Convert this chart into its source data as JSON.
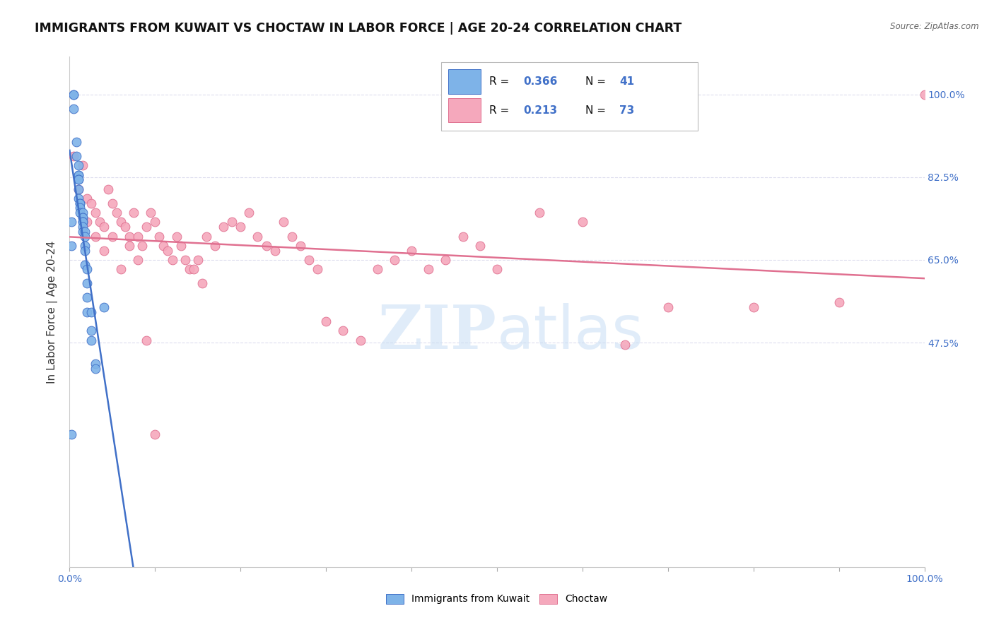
{
  "title": "IMMIGRANTS FROM KUWAIT VS CHOCTAW IN LABOR FORCE | AGE 20-24 CORRELATION CHART",
  "source": "Source: ZipAtlas.com",
  "ylabel": "In Labor Force | Age 20-24",
  "xlim": [
    0.0,
    100.0
  ],
  "ylim": [
    0.0,
    108.0
  ],
  "ytick_labels": [
    "100.0%",
    "82.5%",
    "65.0%",
    "47.5%"
  ],
  "ytick_values": [
    100.0,
    82.5,
    65.0,
    47.5
  ],
  "color_kuwait": "#7eb3e8",
  "color_choctaw": "#f5a8bc",
  "color_line_kuwait": "#4070c8",
  "color_line_choctaw": "#e07090",
  "background_color": "#ffffff",
  "kuwait_x": [
    0.2,
    0.2,
    0.5,
    0.5,
    0.5,
    0.8,
    0.8,
    1.0,
    1.0,
    1.0,
    1.0,
    1.0,
    1.0,
    1.0,
    1.2,
    1.2,
    1.2,
    1.2,
    1.5,
    1.5,
    1.5,
    1.5,
    1.5,
    1.5,
    1.5,
    1.8,
    1.8,
    1.8,
    1.8,
    1.8,
    2.0,
    2.0,
    2.0,
    2.0,
    2.5,
    2.5,
    2.5,
    3.0,
    3.0,
    4.0,
    0.2
  ],
  "kuwait_y": [
    73,
    68,
    100,
    100,
    97,
    90,
    87,
    85,
    83,
    83,
    82,
    82,
    80,
    78,
    77,
    77,
    76,
    75,
    75,
    74,
    74,
    73,
    73,
    72,
    71,
    71,
    70,
    68,
    67,
    64,
    63,
    60,
    57,
    54,
    54,
    50,
    48,
    43,
    42,
    55,
    28
  ],
  "choctaw_x": [
    0.5,
    1.0,
    1.5,
    2.0,
    2.5,
    3.0,
    3.5,
    4.0,
    4.5,
    5.0,
    5.5,
    6.0,
    6.5,
    7.0,
    7.5,
    8.0,
    8.5,
    9.0,
    9.5,
    10.0,
    10.5,
    11.0,
    11.5,
    12.0,
    12.5,
    13.0,
    13.5,
    14.0,
    14.5,
    15.0,
    15.5,
    16.0,
    17.0,
    18.0,
    19.0,
    20.0,
    21.0,
    22.0,
    23.0,
    24.0,
    25.0,
    26.0,
    27.0,
    28.0,
    29.0,
    30.0,
    32.0,
    34.0,
    36.0,
    38.0,
    40.0,
    42.0,
    44.0,
    46.0,
    48.0,
    50.0,
    55.0,
    60.0,
    65.0,
    70.0,
    80.0,
    90.0,
    100.0,
    2.0,
    3.0,
    4.0,
    5.0,
    6.0,
    7.0,
    8.0,
    9.0,
    10.0
  ],
  "choctaw_y": [
    87,
    80,
    85,
    78,
    77,
    75,
    73,
    72,
    80,
    70,
    75,
    73,
    72,
    70,
    75,
    70,
    68,
    72,
    75,
    73,
    70,
    68,
    67,
    65,
    70,
    68,
    65,
    63,
    63,
    65,
    60,
    70,
    68,
    72,
    73,
    72,
    75,
    70,
    68,
    67,
    73,
    70,
    68,
    65,
    63,
    52,
    50,
    48,
    63,
    65,
    67,
    63,
    65,
    70,
    68,
    63,
    75,
    73,
    47,
    55,
    55,
    56,
    100,
    73,
    70,
    67,
    77,
    63,
    68,
    65,
    48,
    28
  ],
  "watermark_zip": "ZIP",
  "watermark_atlas": "atlas",
  "title_fontsize": 12.5,
  "axis_label_fontsize": 11,
  "tick_fontsize": 10
}
